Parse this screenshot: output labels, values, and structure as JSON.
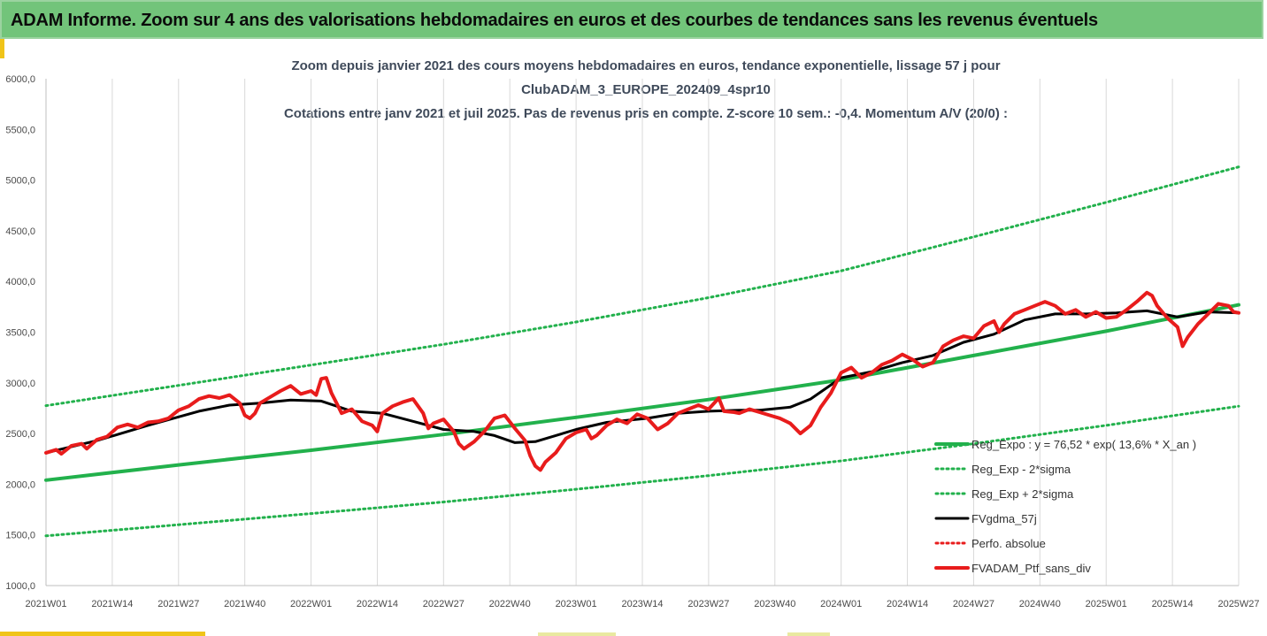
{
  "banner": {
    "title": "ADAM Informe. Zoom sur 4 ans des valorisations hebdomadaires en euros et des courbes de tendances sans les revenus éventuels"
  },
  "chart_data": {
    "type": "line",
    "title_lines": [
      "Zoom depuis janvier 2021 des cours moyens hebdomadaires  en euros, tendance exponentielle, lissage 57 j pour",
      "ClubADAM_3_EUROPE_202409_4spr10",
      "Cotations entre janv 2021 et juil 2025. Pas de revenus pris en compte. Z-score 10 sem.: -0,4. Momentum A/V (20/0) :"
    ],
    "ylim": [
      1000,
      6000
    ],
    "yticks": [
      "1000,0",
      "1500,0",
      "2000,0",
      "2500,0",
      "3000,0",
      "3500,0",
      "4000,0",
      "4500,0",
      "5000,0",
      "5500,0",
      "6000,0"
    ],
    "ytick_values": [
      1000,
      1500,
      2000,
      2500,
      3000,
      3500,
      4000,
      4500,
      5000,
      5500,
      6000
    ],
    "xlim": [
      0,
      234
    ],
    "xticks": [
      "2021W01",
      "2021W14",
      "2021W27",
      "2021W40",
      "2022W01",
      "2022W14",
      "2022W27",
      "2022W40",
      "2023W01",
      "2023W14",
      "2023W27",
      "2023W40",
      "2024W01",
      "2024W14",
      "2024W27",
      "2024W40",
      "2025W01",
      "2025W14",
      "2025W27"
    ],
    "xtick_positions": [
      0,
      13,
      26,
      39,
      52,
      65,
      78,
      91,
      104,
      117,
      130,
      143,
      156,
      169,
      182,
      195,
      208,
      221,
      234
    ],
    "grid": "vertical",
    "legend_position": "bottom-right",
    "series": [
      {
        "name": "Reg_Expo : y = 76,52 * exp( 13,6% *  X_an )",
        "color": "#22b14c",
        "style": "solid",
        "width": 4,
        "points": [
          [
            0,
            2040
          ],
          [
            26,
            2190
          ],
          [
            52,
            2335
          ],
          [
            78,
            2490
          ],
          [
            104,
            2660
          ],
          [
            130,
            2835
          ],
          [
            156,
            3030
          ],
          [
            182,
            3270
          ],
          [
            208,
            3510
          ],
          [
            234,
            3770
          ]
        ]
      },
      {
        "name": "Reg_Exp - 2*sigma",
        "color": "#22b14c",
        "style": "dotted",
        "width": 3,
        "points": [
          [
            0,
            1490
          ],
          [
            26,
            1600
          ],
          [
            52,
            1710
          ],
          [
            78,
            1825
          ],
          [
            104,
            1950
          ],
          [
            130,
            2085
          ],
          [
            156,
            2230
          ],
          [
            182,
            2400
          ],
          [
            208,
            2580
          ],
          [
            234,
            2770
          ]
        ]
      },
      {
        "name": "Reg_Exp + 2*sigma",
        "color": "#22b14c",
        "style": "dotted",
        "width": 3,
        "points": [
          [
            0,
            2775
          ],
          [
            26,
            2975
          ],
          [
            52,
            3175
          ],
          [
            78,
            3380
          ],
          [
            104,
            3600
          ],
          [
            130,
            3840
          ],
          [
            156,
            4105
          ],
          [
            182,
            4440
          ],
          [
            208,
            4780
          ],
          [
            234,
            5130
          ]
        ]
      },
      {
        "name": "FVgdma_57j",
        "color": "#000000",
        "style": "solid",
        "width": 3,
        "points": [
          [
            0,
            2310
          ],
          [
            10,
            2430
          ],
          [
            20,
            2580
          ],
          [
            30,
            2720
          ],
          [
            36,
            2780
          ],
          [
            42,
            2800
          ],
          [
            48,
            2830
          ],
          [
            54,
            2820
          ],
          [
            60,
            2720
          ],
          [
            66,
            2700
          ],
          [
            72,
            2620
          ],
          [
            78,
            2540
          ],
          [
            84,
            2520
          ],
          [
            88,
            2480
          ],
          [
            92,
            2410
          ],
          [
            96,
            2420
          ],
          [
            100,
            2480
          ],
          [
            104,
            2540
          ],
          [
            110,
            2610
          ],
          [
            118,
            2650
          ],
          [
            124,
            2700
          ],
          [
            130,
            2720
          ],
          [
            136,
            2730
          ],
          [
            140,
            2730
          ],
          [
            146,
            2760
          ],
          [
            150,
            2840
          ],
          [
            156,
            3050
          ],
          [
            162,
            3110
          ],
          [
            168,
            3200
          ],
          [
            174,
            3270
          ],
          [
            180,
            3400
          ],
          [
            186,
            3480
          ],
          [
            192,
            3620
          ],
          [
            198,
            3680
          ],
          [
            204,
            3680
          ],
          [
            210,
            3690
          ],
          [
            216,
            3710
          ],
          [
            222,
            3650
          ],
          [
            228,
            3700
          ],
          [
            234,
            3690
          ]
        ]
      },
      {
        "name": "Perfo. absolue",
        "color": "#e81c1c",
        "style": "dotted",
        "width": 3,
        "points": []
      },
      {
        "name": "FVADAM_Ptf_sans_div",
        "color": "#e81c1c",
        "style": "solid",
        "width": 4,
        "points": [
          [
            0,
            2310
          ],
          [
            2,
            2340
          ],
          [
            3,
            2300
          ],
          [
            5,
            2380
          ],
          [
            7,
            2400
          ],
          [
            8,
            2350
          ],
          [
            10,
            2440
          ],
          [
            12,
            2470
          ],
          [
            14,
            2560
          ],
          [
            16,
            2590
          ],
          [
            18,
            2560
          ],
          [
            20,
            2610
          ],
          [
            22,
            2620
          ],
          [
            24,
            2650
          ],
          [
            26,
            2730
          ],
          [
            28,
            2770
          ],
          [
            30,
            2840
          ],
          [
            32,
            2870
          ],
          [
            34,
            2850
          ],
          [
            36,
            2880
          ],
          [
            38,
            2800
          ],
          [
            39,
            2680
          ],
          [
            40,
            2650
          ],
          [
            41,
            2700
          ],
          [
            42,
            2800
          ],
          [
            44,
            2860
          ],
          [
            46,
            2920
          ],
          [
            48,
            2970
          ],
          [
            50,
            2890
          ],
          [
            52,
            2920
          ],
          [
            53,
            2880
          ],
          [
            54,
            3040
          ],
          [
            55,
            3050
          ],
          [
            56,
            2900
          ],
          [
            57,
            2800
          ],
          [
            58,
            2700
          ],
          [
            60,
            2740
          ],
          [
            62,
            2620
          ],
          [
            64,
            2580
          ],
          [
            65,
            2520
          ],
          [
            66,
            2700
          ],
          [
            68,
            2770
          ],
          [
            70,
            2810
          ],
          [
            72,
            2840
          ],
          [
            74,
            2700
          ],
          [
            75,
            2550
          ],
          [
            76,
            2600
          ],
          [
            78,
            2640
          ],
          [
            80,
            2520
          ],
          [
            81,
            2400
          ],
          [
            82,
            2350
          ],
          [
            84,
            2420
          ],
          [
            86,
            2520
          ],
          [
            88,
            2650
          ],
          [
            90,
            2680
          ],
          [
            92,
            2550
          ],
          [
            94,
            2430
          ],
          [
            95,
            2280
          ],
          [
            96,
            2180
          ],
          [
            97,
            2140
          ],
          [
            98,
            2220
          ],
          [
            100,
            2310
          ],
          [
            102,
            2450
          ],
          [
            104,
            2510
          ],
          [
            106,
            2540
          ],
          [
            107,
            2450
          ],
          [
            108,
            2480
          ],
          [
            110,
            2580
          ],
          [
            112,
            2640
          ],
          [
            114,
            2600
          ],
          [
            116,
            2690
          ],
          [
            118,
            2650
          ],
          [
            120,
            2540
          ],
          [
            122,
            2600
          ],
          [
            124,
            2700
          ],
          [
            126,
            2740
          ],
          [
            128,
            2780
          ],
          [
            130,
            2740
          ],
          [
            132,
            2850
          ],
          [
            133,
            2720
          ],
          [
            135,
            2710
          ],
          [
            136,
            2700
          ],
          [
            138,
            2740
          ],
          [
            140,
            2710
          ],
          [
            142,
            2680
          ],
          [
            144,
            2650
          ],
          [
            146,
            2600
          ],
          [
            148,
            2500
          ],
          [
            150,
            2580
          ],
          [
            152,
            2760
          ],
          [
            154,
            2900
          ],
          [
            156,
            3100
          ],
          [
            158,
            3150
          ],
          [
            160,
            3050
          ],
          [
            162,
            3100
          ],
          [
            164,
            3180
          ],
          [
            166,
            3220
          ],
          [
            168,
            3280
          ],
          [
            170,
            3230
          ],
          [
            172,
            3160
          ],
          [
            174,
            3200
          ],
          [
            176,
            3360
          ],
          [
            178,
            3420
          ],
          [
            180,
            3460
          ],
          [
            182,
            3440
          ],
          [
            184,
            3560
          ],
          [
            186,
            3610
          ],
          [
            187,
            3500
          ],
          [
            188,
            3580
          ],
          [
            190,
            3680
          ],
          [
            192,
            3720
          ],
          [
            194,
            3760
          ],
          [
            196,
            3800
          ],
          [
            198,
            3760
          ],
          [
            200,
            3680
          ],
          [
            202,
            3720
          ],
          [
            204,
            3650
          ],
          [
            206,
            3700
          ],
          [
            208,
            3640
          ],
          [
            210,
            3650
          ],
          [
            212,
            3720
          ],
          [
            214,
            3800
          ],
          [
            216,
            3890
          ],
          [
            217,
            3860
          ],
          [
            218,
            3760
          ],
          [
            220,
            3640
          ],
          [
            222,
            3550
          ],
          [
            223,
            3360
          ],
          [
            224,
            3450
          ],
          [
            226,
            3580
          ],
          [
            228,
            3680
          ],
          [
            230,
            3780
          ],
          [
            232,
            3760
          ],
          [
            233,
            3700
          ],
          [
            234,
            3690
          ]
        ]
      }
    ]
  }
}
